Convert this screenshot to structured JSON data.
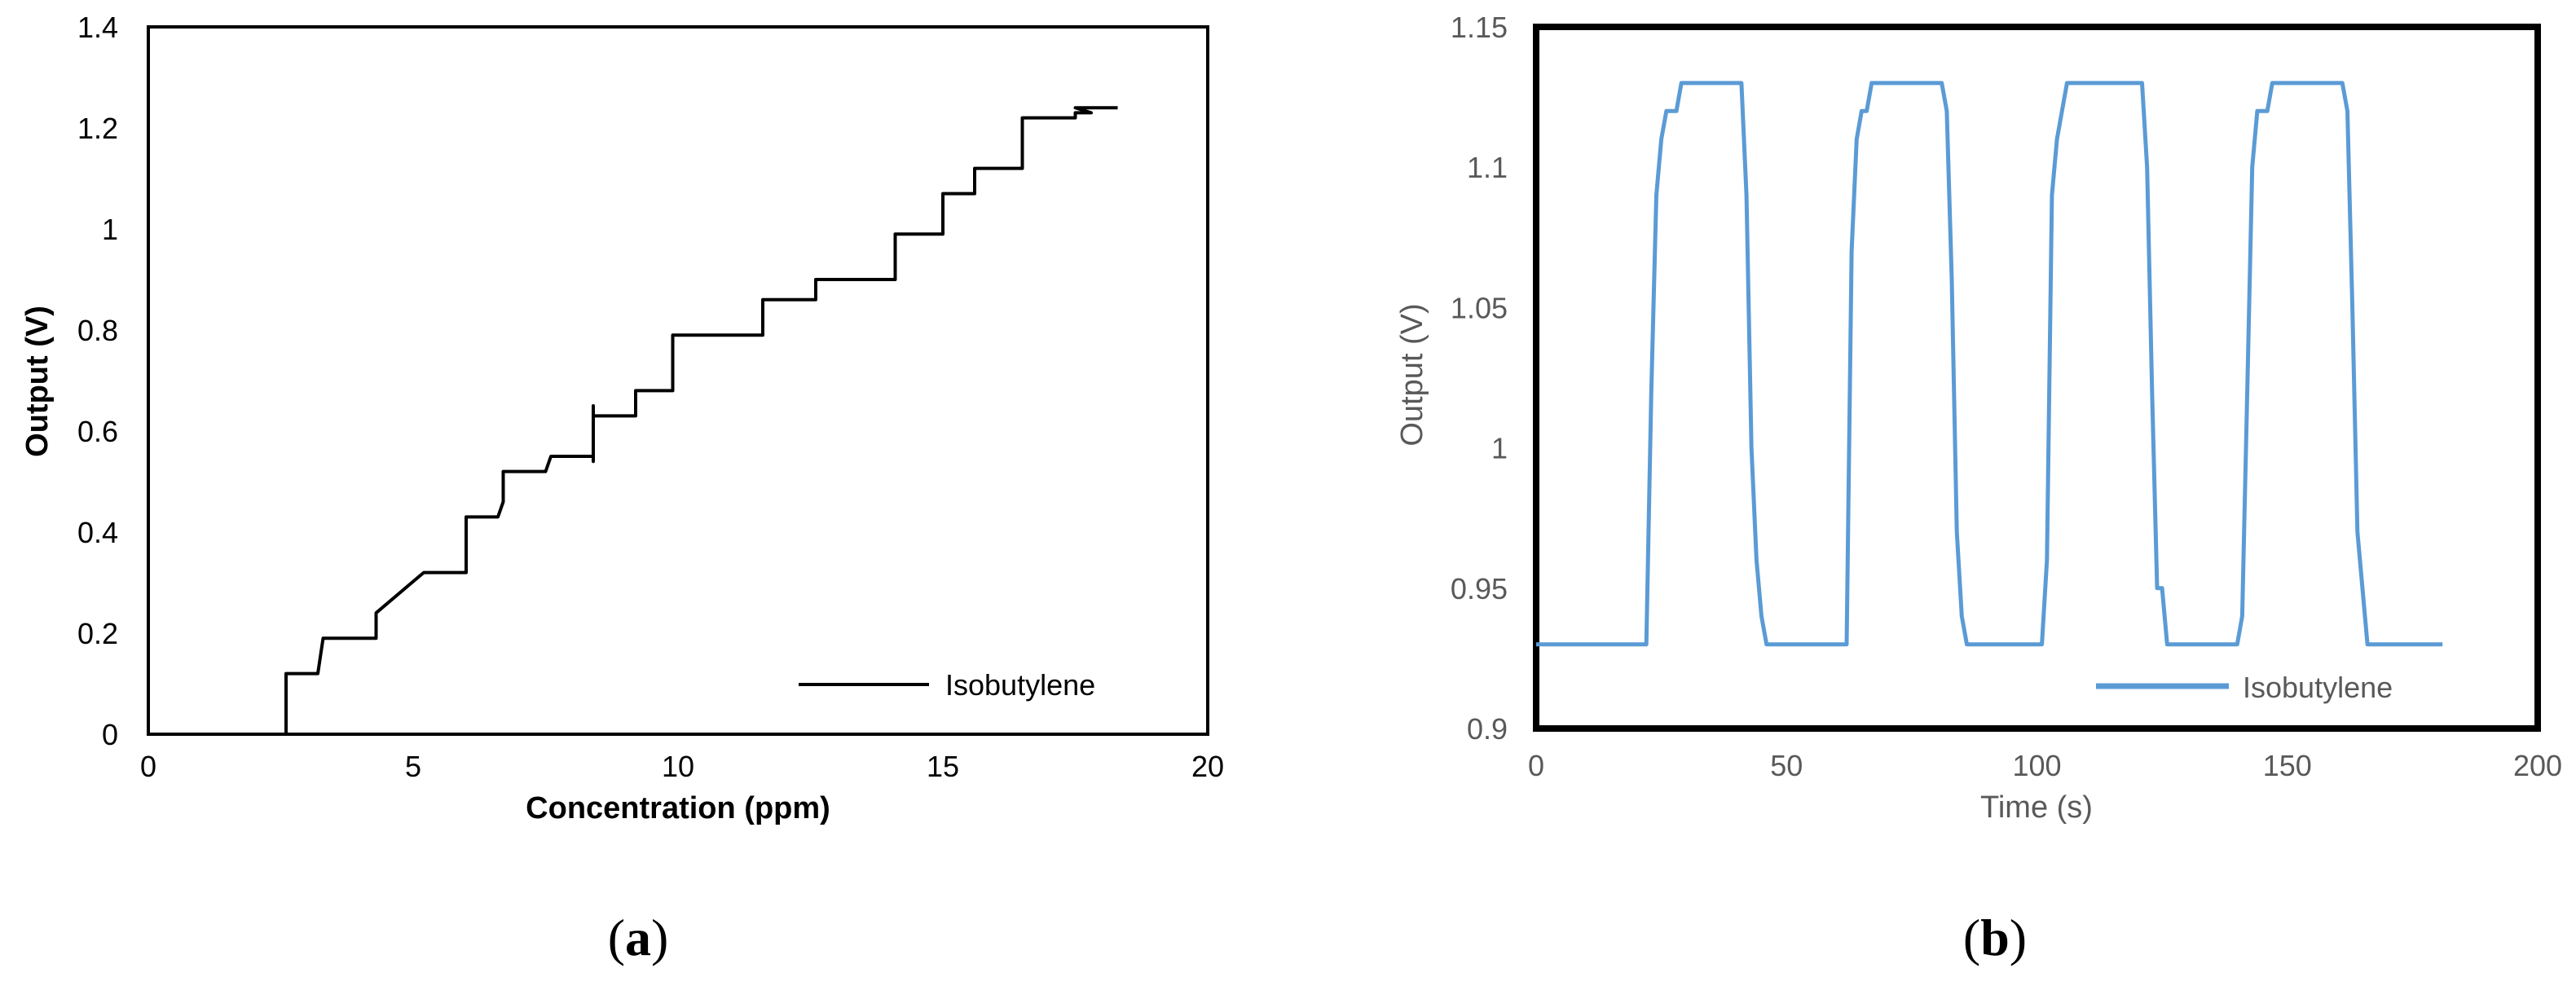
{
  "chart_data": [
    {
      "type": "line",
      "panel_label": "(a)",
      "panel_letter": "a",
      "xlabel": "Concentration (ppm)",
      "ylabel": "Output (V)",
      "xlim": [
        0,
        20
      ],
      "ylim": [
        0,
        1.4
      ],
      "x_ticks": [
        0,
        5,
        10,
        15,
        20
      ],
      "y_ticks": [
        0,
        0.2,
        0.4,
        0.6,
        0.8,
        1,
        1.2,
        1.4
      ],
      "y_tick_labels": [
        "0",
        "0.2",
        "0.4",
        "0.6",
        "0.8",
        "1",
        "1.2",
        "1.4"
      ],
      "grid": false,
      "legend_position": "bottom-right",
      "series": [
        {
          "name": "Isobutylene",
          "color": "#000000",
          "points": [
            [
              2.6,
              0
            ],
            [
              2.6,
              0.12
            ],
            [
              3.2,
              0.12
            ],
            [
              3.3,
              0.19
            ],
            [
              4.3,
              0.19
            ],
            [
              4.3,
              0.24
            ],
            [
              5.2,
              0.32
            ],
            [
              6.0,
              0.32
            ],
            [
              6.0,
              0.43
            ],
            [
              6.6,
              0.43
            ],
            [
              6.7,
              0.46
            ],
            [
              6.7,
              0.52
            ],
            [
              7.5,
              0.52
            ],
            [
              7.6,
              0.55
            ],
            [
              8.4,
              0.55
            ],
            [
              8.4,
              0.54
            ],
            [
              8.4,
              0.65
            ],
            [
              8.4,
              0.63
            ],
            [
              9.2,
              0.63
            ],
            [
              9.2,
              0.68
            ],
            [
              9.9,
              0.68
            ],
            [
              9.9,
              0.79
            ],
            [
              11.6,
              0.79
            ],
            [
              11.6,
              0.86
            ],
            [
              12.6,
              0.86
            ],
            [
              12.6,
              0.9
            ],
            [
              14.1,
              0.9
            ],
            [
              14.1,
              0.99
            ],
            [
              15.0,
              0.99
            ],
            [
              15.0,
              1.07
            ],
            [
              15.6,
              1.07
            ],
            [
              15.6,
              1.12
            ],
            [
              16.5,
              1.12
            ],
            [
              16.5,
              1.22
            ],
            [
              17.5,
              1.22
            ],
            [
              17.5,
              1.23
            ],
            [
              17.8,
              1.23
            ],
            [
              17.5,
              1.24
            ],
            [
              18.3,
              1.24
            ]
          ]
        }
      ]
    },
    {
      "type": "line",
      "panel_label": "(b)",
      "panel_letter": "b",
      "xlabel": "Time (s)",
      "ylabel": "Output (V)",
      "xlim": [
        0,
        200
      ],
      "ylim": [
        0.9,
        1.15
      ],
      "x_ticks": [
        0,
        50,
        100,
        150,
        200
      ],
      "y_ticks": [
        0.9,
        0.95,
        1,
        1.05,
        1.1,
        1.15
      ],
      "y_tick_labels": [
        "0.9",
        "0.95",
        "1",
        "1.05",
        "1.1",
        "1.15"
      ],
      "grid": false,
      "legend_position": "bottom-right",
      "series": [
        {
          "name": "Isobutylene",
          "color": "#5b9bd5",
          "points": [
            [
              0,
              0.93
            ],
            [
              22,
              0.93
            ],
            [
              23,
              1.02
            ],
            [
              24,
              1.09
            ],
            [
              25,
              1.11
            ],
            [
              26,
              1.12
            ],
            [
              28,
              1.12
            ],
            [
              29,
              1.13
            ],
            [
              41,
              1.13
            ],
            [
              42,
              1.09
            ],
            [
              43,
              1.0
            ],
            [
              44,
              0.96
            ],
            [
              45,
              0.94
            ],
            [
              46,
              0.93
            ],
            [
              62,
              0.93
            ],
            [
              63,
              1.07
            ],
            [
              64,
              1.11
            ],
            [
              65,
              1.12
            ],
            [
              66,
              1.12
            ],
            [
              67,
              1.13
            ],
            [
              81,
              1.13
            ],
            [
              82,
              1.12
            ],
            [
              83,
              1.06
            ],
            [
              84,
              0.97
            ],
            [
              85,
              0.94
            ],
            [
              86,
              0.93
            ],
            [
              101,
              0.93
            ],
            [
              102,
              0.96
            ],
            [
              103,
              1.09
            ],
            [
              104,
              1.11
            ],
            [
              106,
              1.13
            ],
            [
              121,
              1.13
            ],
            [
              122,
              1.1
            ],
            [
              123,
              1.02
            ],
            [
              124,
              0.95
            ],
            [
              125,
              0.95
            ],
            [
              126,
              0.93
            ],
            [
              140,
              0.93
            ],
            [
              141,
              0.94
            ],
            [
              142,
              1.02
            ],
            [
              143,
              1.1
            ],
            [
              144,
              1.12
            ],
            [
              146,
              1.12
            ],
            [
              147,
              1.13
            ],
            [
              161,
              1.13
            ],
            [
              162,
              1.12
            ],
            [
              163,
              1.05
            ],
            [
              164,
              0.97
            ],
            [
              166,
              0.93
            ],
            [
              181,
              0.93
            ]
          ]
        }
      ]
    }
  ]
}
